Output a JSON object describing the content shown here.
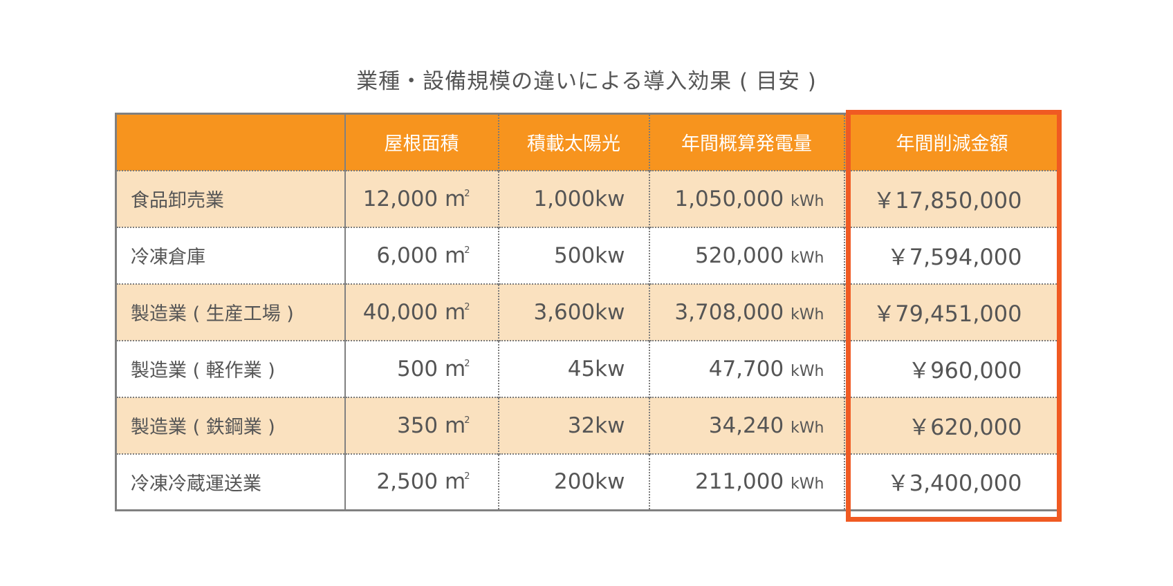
{
  "title": "業種・設備規模の違いによる導入効果 ( 目安 )",
  "colors": {
    "header_bg": "#f7941e",
    "row_alt_bg": "#fae1bf",
    "highlight": "#f05a22"
  },
  "headers": [
    "",
    "屋根面積",
    "積載太陽光",
    "年間概算発電量",
    "年間削減金額"
  ],
  "units": {
    "area": "㎡",
    "area_sup": "2",
    "power": "kw",
    "energy": "kWh"
  },
  "rows": [
    {
      "name": "食品卸売業",
      "area": "12,000 m",
      "solar": "1,000kw",
      "generation": "1,050,000",
      "savings": "￥17,850,000"
    },
    {
      "name": "冷凍倉庫",
      "area": "6,000 m",
      "solar": "500kw",
      "generation": "520,000",
      "savings": "￥7,594,000"
    },
    {
      "name": "製造業 ( 生産工場 )",
      "area": "40,000 m",
      "solar": "3,600kw",
      "generation": "3,708,000",
      "savings": "￥79,451,000"
    },
    {
      "name": "製造業 ( 軽作業 )",
      "area": "500 m",
      "solar": "45kw",
      "generation": "47,700",
      "savings": "￥960,000"
    },
    {
      "name": "製造業 ( 鉄鋼業 )",
      "area": "350 m",
      "solar": "32kw",
      "generation": "34,240",
      "savings": "￥620,000"
    },
    {
      "name": "冷凍冷蔵運送業",
      "area": "2,500 m",
      "solar": "200kw",
      "generation": "211,000",
      "savings": "￥3,400,000"
    }
  ]
}
